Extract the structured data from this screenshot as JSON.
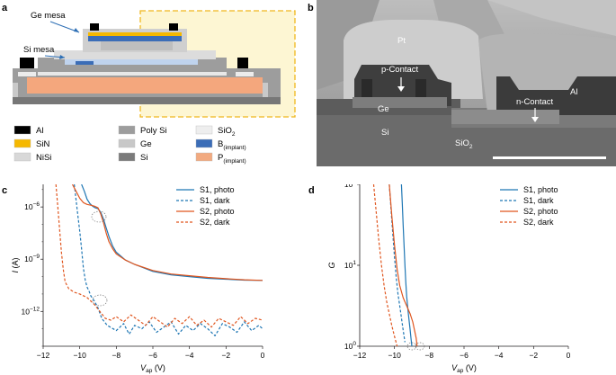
{
  "panel_a": {
    "letter": "a",
    "ge_mesa": "Ge mesa",
    "si_mesa": "Si mesa",
    "legend": [
      {
        "label": "Al",
        "color": "#000000",
        "sub": ""
      },
      {
        "label": "SiN",
        "color": "#f5b800",
        "sub": ""
      },
      {
        "label": "NiSi",
        "color": "#d8d8d8",
        "sub": ""
      },
      {
        "label": "Poly Si",
        "color": "#9d9d9d",
        "sub": ""
      },
      {
        "label": "Ge",
        "color": "#c8c8c8",
        "sub": ""
      },
      {
        "label": "Si",
        "color": "#7b7b7b",
        "sub": ""
      },
      {
        "label": "SiO",
        "color": "#eeeeee",
        "sub": "2"
      },
      {
        "label": "B",
        "color": "#3b6db7",
        "sub": "(implant)"
      },
      {
        "label": "P",
        "color": "#f2aa80",
        "sub": "(implant)"
      }
    ]
  },
  "panel_b": {
    "letter": "b",
    "labels": {
      "pt": "Pt",
      "p_contact": "p-Contact",
      "al": "Al",
      "ge": "Ge",
      "n_contact": "n-Contact",
      "si": "Si",
      "sio2_base": "SiO",
      "sio2_sub": "2"
    }
  },
  "chart_data": [
    {
      "panel": "c",
      "type": "line",
      "x_label_main": "V",
      "x_label_sub": "ap",
      "x_label_unit": "(V)",
      "y_label_main": "I",
      "y_label_unit": "(A)",
      "x_ticks": [
        "−12",
        "−10",
        "−8",
        "−6",
        "−4",
        "−2",
        "0"
      ],
      "y_ticks": [
        {
          "base": "10",
          "exp": "−6"
        },
        {
          "base": "10",
          "exp": "−9"
        },
        {
          "base": "10",
          "exp": "−12"
        }
      ],
      "xlim": [
        -12,
        0
      ],
      "y_log": true,
      "ylim_log10": [
        -14,
        -4.7
      ],
      "series": [
        {
          "name": "S1, photo",
          "color": "#1f77b4",
          "dash": false,
          "x": [
            -9.9,
            -9.75,
            -9.6,
            -9.45,
            -9.3,
            -9.15,
            -9.0,
            -8.85,
            -8.7,
            -8.55,
            -8.4,
            -8.2,
            -8.0,
            -7.5,
            -7.0,
            -6.0,
            -5.0,
            -4.0,
            -3.0,
            -2.0,
            -1.0,
            0.0
          ],
          "y_log10": [
            -4.7,
            -5.1,
            -5.55,
            -5.8,
            -5.95,
            -6.05,
            -6.1,
            -6.3,
            -6.7,
            -7.2,
            -7.7,
            -8.25,
            -8.6,
            -9.05,
            -9.3,
            -9.7,
            -9.9,
            -10.0,
            -10.1,
            -10.15,
            -10.2,
            -10.22
          ]
        },
        {
          "name": "S1, dark",
          "color": "#1f77b4",
          "dash": true,
          "x": [
            -10.3,
            -10.2,
            -10.1,
            -10.0,
            -9.9,
            -9.8,
            -9.7,
            -9.6,
            -9.5,
            -9.4,
            -9.2,
            -9.0,
            -8.8,
            -8.5,
            -8.0,
            -7.6,
            -7.3,
            -7.0,
            -6.6,
            -6.2,
            -5.8,
            -5.4,
            -5.0,
            -4.6,
            -4.2,
            -3.8,
            -3.4,
            -3.0,
            -2.6,
            -2.2,
            -1.8,
            -1.4,
            -1.0,
            -0.6,
            -0.2,
            0.0
          ],
          "y_log10": [
            -4.7,
            -5.6,
            -6.5,
            -7.4,
            -8.4,
            -9.5,
            -10.2,
            -10.6,
            -10.8,
            -11.1,
            -11.4,
            -11.8,
            -12.4,
            -12.8,
            -13.1,
            -12.7,
            -13.3,
            -12.8,
            -13.0,
            -12.6,
            -13.2,
            -12.9,
            -12.6,
            -13.3,
            -12.8,
            -13.1,
            -12.7,
            -13.0,
            -13.4,
            -12.7,
            -12.9,
            -13.2,
            -12.6,
            -13.1,
            -12.8,
            -13.0
          ]
        },
        {
          "name": "S2, photo",
          "color": "#e0561f",
          "dash": false,
          "x": [
            -10.4,
            -10.2,
            -10.0,
            -9.8,
            -9.6,
            -9.4,
            -9.2,
            -9.0,
            -8.85,
            -8.7,
            -8.55,
            -8.4,
            -8.2,
            -8.0,
            -7.5,
            -7.0,
            -6.0,
            -5.0,
            -4.0,
            -3.0,
            -2.0,
            -1.0,
            0.0
          ],
          "y_log10": [
            -4.7,
            -5.1,
            -5.5,
            -5.75,
            -5.85,
            -5.9,
            -5.95,
            -6.05,
            -6.4,
            -6.9,
            -7.5,
            -8.0,
            -8.4,
            -8.7,
            -9.05,
            -9.3,
            -9.65,
            -9.85,
            -9.95,
            -10.05,
            -10.12,
            -10.18,
            -10.22
          ]
        },
        {
          "name": "S2, dark",
          "color": "#e0561f",
          "dash": true,
          "x": [
            -11.3,
            -11.2,
            -11.1,
            -11.0,
            -10.9,
            -10.8,
            -10.6,
            -10.3,
            -10.0,
            -9.6,
            -9.2,
            -8.9,
            -8.6,
            -8.3,
            -8.0,
            -7.6,
            -7.2,
            -6.8,
            -6.4,
            -6.0,
            -5.6,
            -5.2,
            -4.8,
            -4.4,
            -4.0,
            -3.6,
            -3.2,
            -2.8,
            -2.4,
            -2.0,
            -1.6,
            -1.2,
            -0.8,
            -0.4,
            0.0
          ],
          "y_log10": [
            -4.7,
            -6.0,
            -7.3,
            -8.6,
            -9.6,
            -10.3,
            -10.7,
            -10.9,
            -11.0,
            -11.2,
            -11.6,
            -12.0,
            -12.4,
            -12.5,
            -12.3,
            -12.6,
            -12.2,
            -12.5,
            -12.8,
            -12.3,
            -12.6,
            -12.9,
            -12.4,
            -12.7,
            -12.3,
            -12.8,
            -12.5,
            -12.9,
            -12.4,
            -12.6,
            -12.8,
            -12.3,
            -12.7,
            -12.4,
            -12.5
          ]
        }
      ]
    },
    {
      "panel": "d",
      "type": "line",
      "x_label_main": "V",
      "x_label_sub": "ap",
      "x_label_unit": "(V)",
      "y_label_main": "G",
      "x_ticks": [
        "−12",
        "−10",
        "−8",
        "−6",
        "−4",
        "−2",
        "0"
      ],
      "y_ticks": [
        {
          "base": "10",
          "exp": "2"
        },
        {
          "base": "10",
          "exp": "1"
        },
        {
          "base": "10",
          "exp": "0"
        }
      ],
      "xlim": [
        -12,
        0
      ],
      "y_log": true,
      "ylim_log10": [
        0,
        2
      ],
      "series": [
        {
          "name": "S1, photo",
          "color": "#1f77b4",
          "dash": false,
          "x": [
            -9.6,
            -9.55,
            -9.5,
            -9.45,
            -9.4,
            -9.35,
            -9.3,
            -9.25,
            -9.2,
            -9.15,
            -9.1,
            -9.05,
            -9.0
          ],
          "y_log10": [
            2.0,
            1.75,
            1.5,
            1.25,
            1.0,
            0.8,
            0.62,
            0.5,
            0.4,
            0.3,
            0.2,
            0.1,
            0.0
          ]
        },
        {
          "name": "S1, dark",
          "color": "#1f77b4",
          "dash": true,
          "x": [
            -10.3,
            -10.2,
            -10.1,
            -10.0,
            -9.9,
            -9.8,
            -9.7,
            -9.6,
            -9.5,
            -9.4
          ],
          "y_log10": [
            2.0,
            1.7,
            1.4,
            1.1,
            0.85,
            0.65,
            0.5,
            0.35,
            0.2,
            0.05
          ]
        },
        {
          "name": "S2, photo",
          "color": "#e0561f",
          "dash": false,
          "x": [
            -10.3,
            -10.15,
            -10.0,
            -9.85,
            -9.7,
            -9.5,
            -9.3,
            -9.1,
            -8.95,
            -8.85,
            -8.75,
            -8.7
          ],
          "y_log10": [
            2.0,
            1.6,
            1.25,
            0.95,
            0.75,
            0.6,
            0.5,
            0.4,
            0.3,
            0.2,
            0.1,
            0.0
          ]
        },
        {
          "name": "S2, dark",
          "color": "#e0561f",
          "dash": true,
          "x": [
            -11.2,
            -11.05,
            -10.9,
            -10.75,
            -10.6,
            -10.45,
            -10.3,
            -10.15,
            -10.0,
            -9.85
          ],
          "y_log10": [
            2.0,
            1.65,
            1.3,
            1.0,
            0.75,
            0.55,
            0.4,
            0.25,
            0.12,
            0.0
          ]
        }
      ]
    }
  ]
}
